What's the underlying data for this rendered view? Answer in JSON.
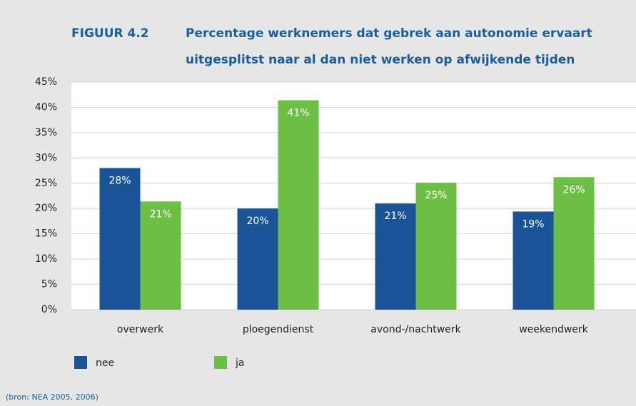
{
  "chart_data": {
    "type": "bar",
    "figure_label": "FIGUUR 4.2",
    "title": [
      "Percentage werknemers dat gebrek aan autonomie ervaart",
      "uitgesplitst naar al dan niet werken op afwijkende tijden"
    ],
    "categories": [
      "overwerk",
      "ploegendienst",
      "avond-/nachtwerk",
      "weekendwerk"
    ],
    "series": [
      {
        "name": "nee",
        "color": "#1a5496",
        "values": [
          28,
          20,
          21,
          19.4
        ],
        "value_labels": [
          "28%",
          "20%",
          "21%",
          "19%"
        ]
      },
      {
        "name": "ja",
        "color": "#6cbf44",
        "values": [
          21.4,
          41.4,
          25.1,
          26.2
        ],
        "value_labels": [
          "21%",
          "41%",
          "25%",
          "26%"
        ]
      }
    ],
    "ylim": [
      0,
      45
    ],
    "yticks": [
      {
        "value": 0,
        "label": "0%"
      },
      {
        "value": 5,
        "label": "5%"
      },
      {
        "value": 10,
        "label": "10%"
      },
      {
        "value": 15,
        "label": "15%"
      },
      {
        "value": 20,
        "label": "20%"
      },
      {
        "value": 25,
        "label": "25%"
      },
      {
        "value": 30,
        "label": "30%"
      },
      {
        "value": 35,
        "label": "35%"
      },
      {
        "value": 40,
        "label": "40%"
      },
      {
        "value": 45,
        "label": "45%"
      }
    ],
    "grid": true,
    "source": "(bron: NEA 2005, 2006)"
  }
}
